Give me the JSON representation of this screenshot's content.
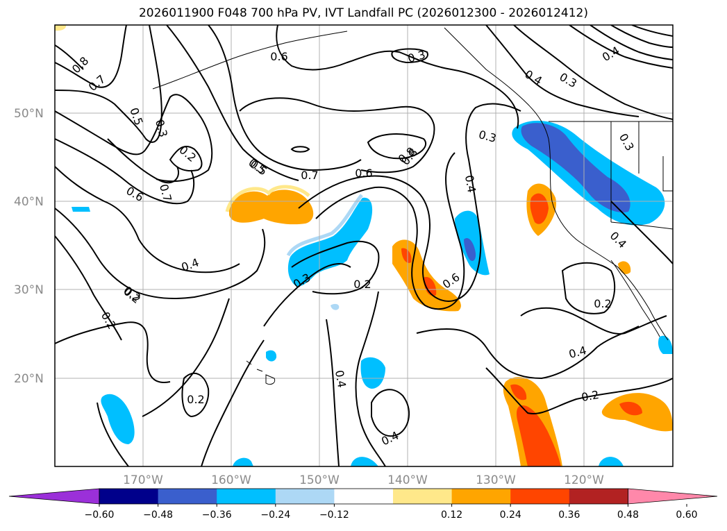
{
  "title": "2026011900 F048 700 hPa PV, IVT Landfall PC (2026012300 - 2026012412)",
  "lat_labels": [
    "50°N",
    "40°N",
    "30°N",
    "20°N"
  ],
  "lon_labels": [
    "170°W",
    "160°W",
    "150°W",
    "140°W",
    "130°W",
    "120°W"
  ],
  "contour_labels": [
    "0.8",
    "0.7",
    "0.5",
    "0.3",
    "0.2",
    "0.6",
    "0.7",
    "0.4",
    "0.2",
    "0.2",
    "0.5",
    "0.7",
    "0.6",
    "0.8",
    "0.3",
    "0.4",
    "0.3",
    "0.3",
    "0.4",
    "0.2",
    "0.3",
    "0.6",
    "0.2",
    "0.4",
    "0.2",
    "0.4",
    "0.2",
    "0.4",
    "0.2",
    "0.5",
    "0.8",
    "0.6",
    "0.4",
    "0.3",
    "0.4"
  ],
  "colorbar": {
    "ticks": [
      "−0.60",
      "−0.48",
      "−0.36",
      "−0.24",
      "−0.12",
      "0.12",
      "0.24",
      "0.36",
      "0.48",
      "0.60"
    ],
    "colors": [
      "#9b30d9",
      "#00008b",
      "#3a5fcd",
      "#00bfff",
      "#add8f5",
      "#ffffff",
      "#ffe88a",
      "#ffa500",
      "#ff4500",
      "#b22222",
      "#ff88aa"
    ]
  },
  "colors": {
    "neg_light": "#add8f5",
    "neg_mid": "#00bfff",
    "neg_dark": "#3a5fcd",
    "pos_light": "#ffe88a",
    "pos_mid": "#ffa500",
    "pos_dark": "#ff4500",
    "grid": "#b0b0b0",
    "contour": "#000000"
  }
}
